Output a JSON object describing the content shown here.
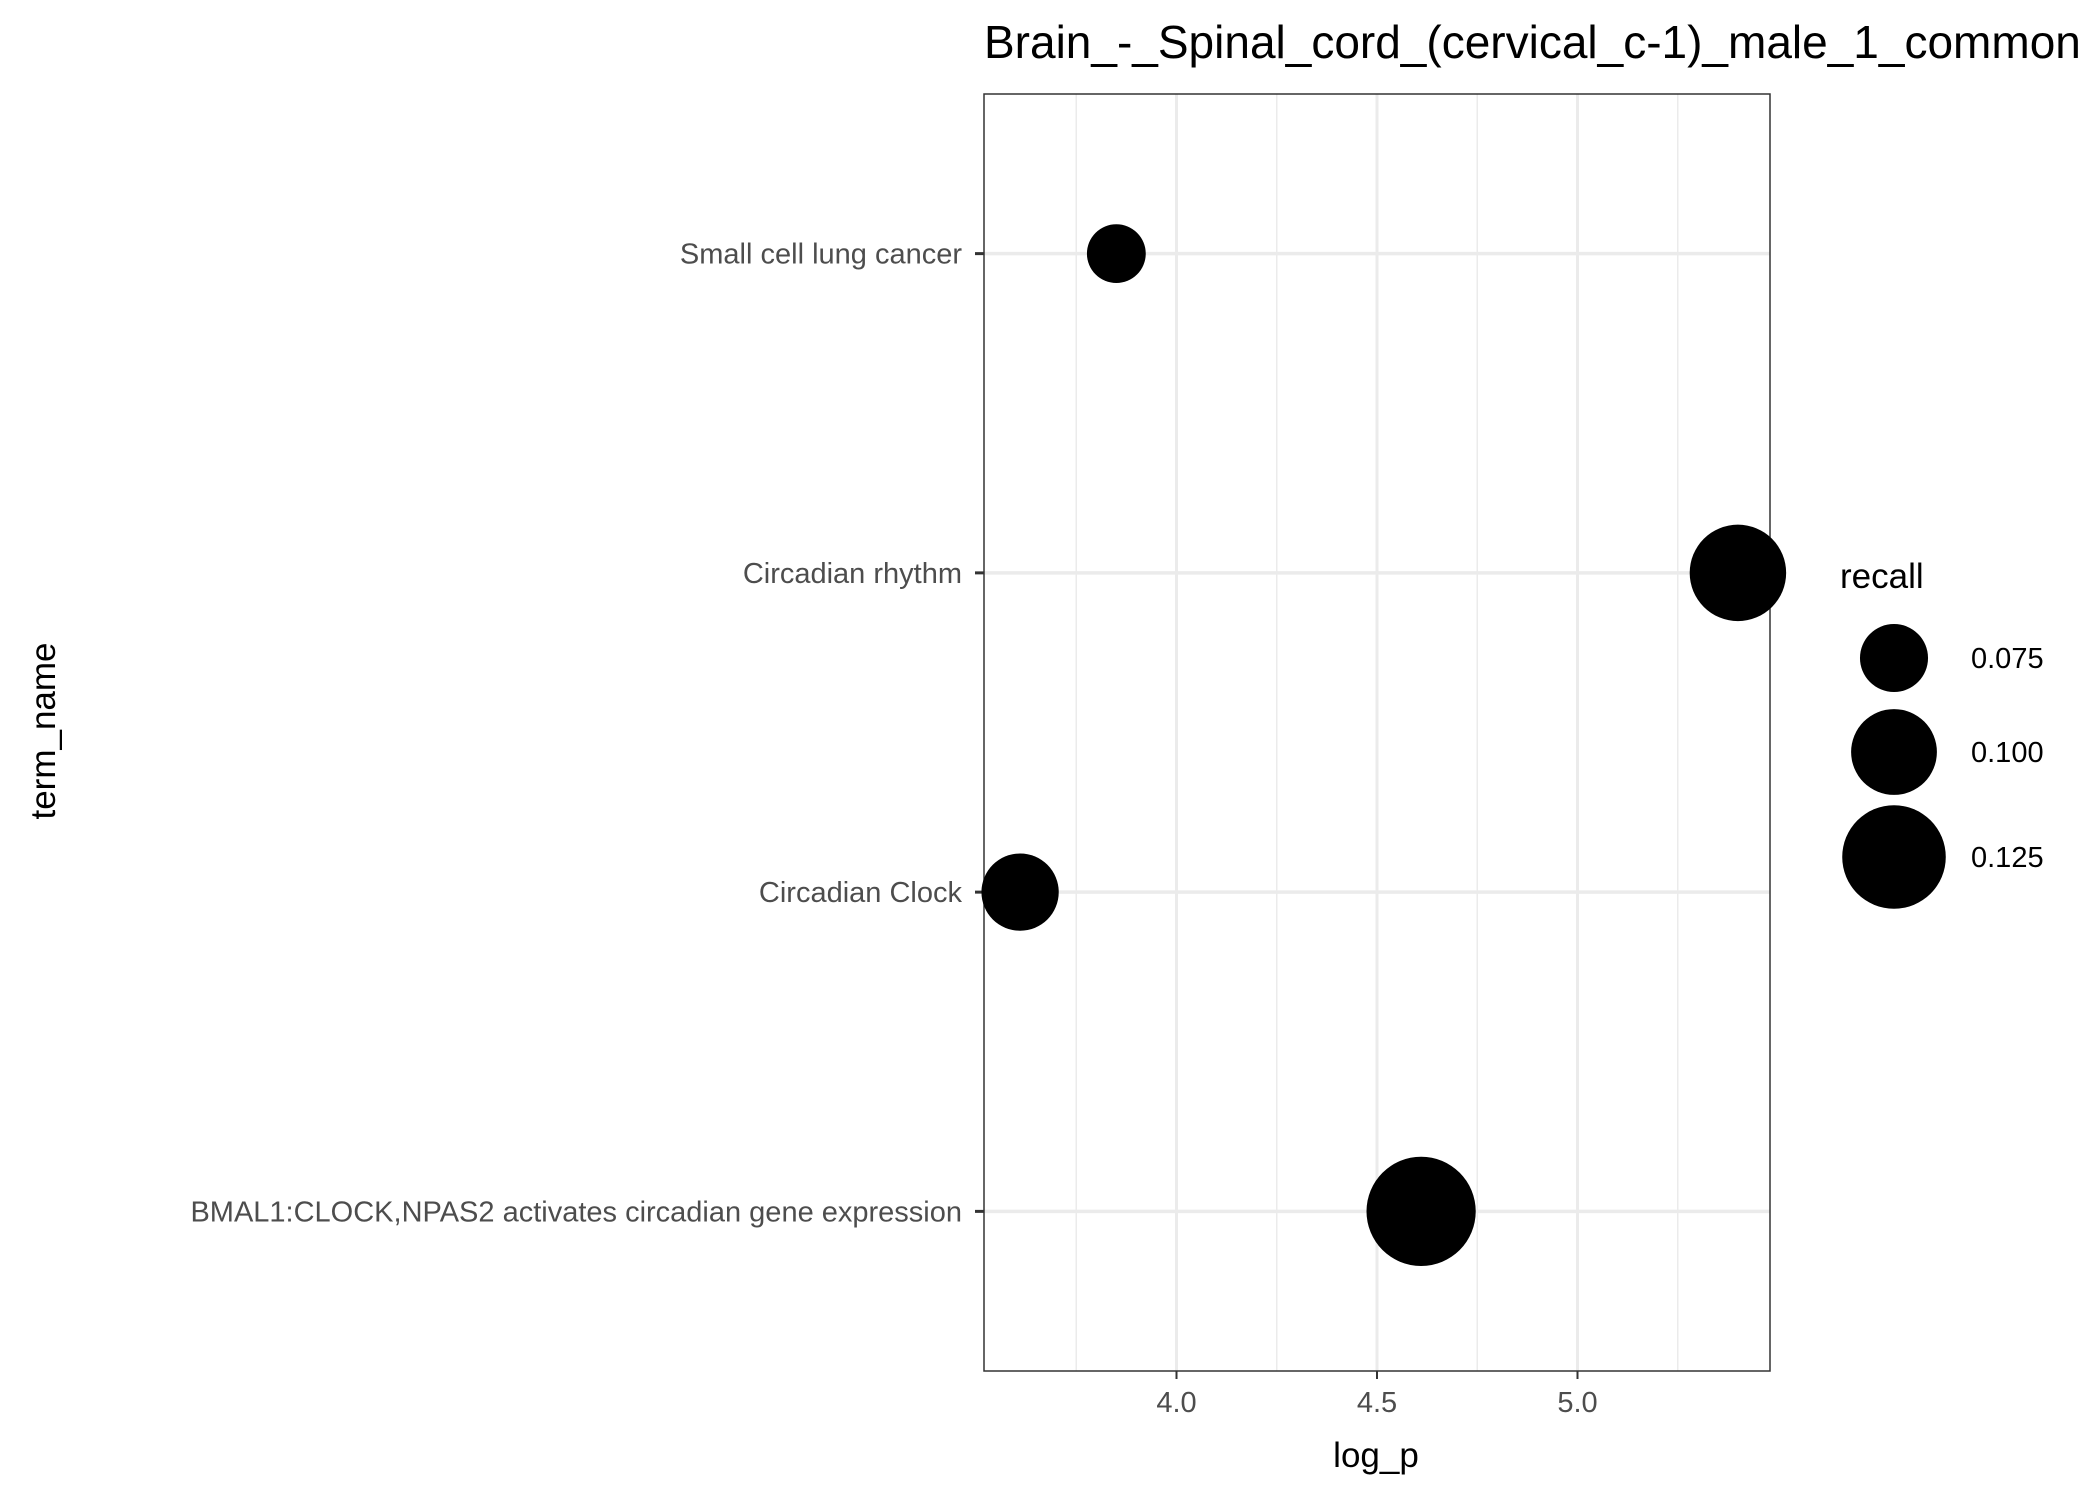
{
  "chart_data": {
    "type": "scatter",
    "title": "Brain_-_Spinal_cord_(cervical_c-1)_male_1_common",
    "xlabel": "log_p",
    "ylabel": "term_name",
    "xlim": [
      3.52,
      5.48
    ],
    "x_ticks": [
      "4.0",
      "4.5",
      "5.0"
    ],
    "categories": [
      "BMAL1:CLOCK,NPAS2 activates circadian gene expression",
      "Circadian Clock",
      "Circadian rhythm",
      "Small cell lung cancer"
    ],
    "points": [
      {
        "term": "Small cell lung cancer",
        "x": 3.85,
        "recall": 0.062
      },
      {
        "term": "Circadian rhythm",
        "x": 5.4,
        "recall": 0.115
      },
      {
        "term": "Circadian Clock",
        "x": 3.61,
        "recall": 0.088
      },
      {
        "term": "BMAL1:CLOCK,NPAS2 activates circadian gene expression",
        "x": 4.61,
        "recall": 0.133
      }
    ],
    "size_legend": {
      "title": "recall",
      "values": [
        0.075,
        0.1,
        0.125
      ],
      "labels": [
        "0.075",
        "0.100",
        "0.125"
      ]
    },
    "grid": true,
    "legend_position": "right",
    "point_color": "#000000"
  }
}
